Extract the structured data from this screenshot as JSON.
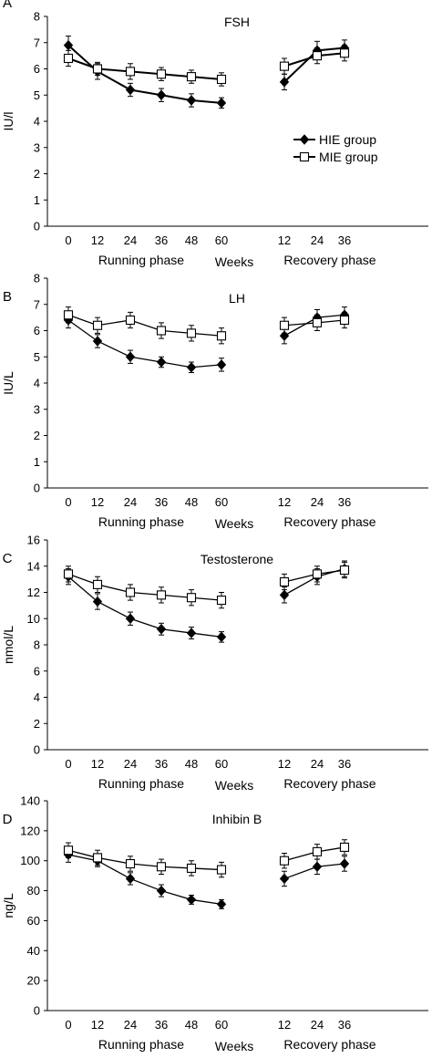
{
  "chart_data": [
    {
      "type": "line",
      "panel_label": "A",
      "title": "FSH",
      "ylabel": "IU/l",
      "ylim": [
        0,
        8
      ],
      "yticks": [
        0,
        1,
        2,
        3,
        4,
        5,
        6,
        7,
        8
      ],
      "x_tick_labels": [
        "0",
        "12",
        "24",
        "36",
        "48",
        "60",
        "12",
        "24",
        "36"
      ],
      "group_labels": [
        "Running phase",
        "Weeks",
        "Recovery phase"
      ],
      "legend": [
        "HIE group",
        "MIE group"
      ],
      "series": [
        {
          "name": "HIE group",
          "marker": "filled-diamond",
          "running": [
            6.9,
            5.9,
            5.2,
            5.0,
            4.8,
            4.7
          ],
          "recovery": [
            5.5,
            6.7,
            6.8
          ],
          "running_err": [
            0.35,
            0.3,
            0.25,
            0.25,
            0.25,
            0.2
          ],
          "recovery_err": [
            0.3,
            0.35,
            0.3
          ]
        },
        {
          "name": "MIE group",
          "marker": "open-square",
          "running": [
            6.4,
            6.0,
            5.9,
            5.8,
            5.7,
            5.6
          ],
          "recovery": [
            6.1,
            6.5,
            6.6
          ],
          "running_err": [
            0.3,
            0.25,
            0.3,
            0.25,
            0.25,
            0.25
          ],
          "recovery_err": [
            0.3,
            0.3,
            0.3
          ]
        }
      ]
    },
    {
      "type": "line",
      "panel_label": "B",
      "title": "LH",
      "ylabel": "IU/L",
      "ylim": [
        0,
        8
      ],
      "yticks": [
        0,
        1,
        2,
        3,
        4,
        5,
        6,
        7,
        8
      ],
      "x_tick_labels": [
        "0",
        "12",
        "24",
        "36",
        "48",
        "60",
        "12",
        "24",
        "36"
      ],
      "group_labels": [
        "Running phase",
        "Weeks",
        "Recovery phase"
      ],
      "series": [
        {
          "name": "HIE group",
          "marker": "filled-diamond",
          "running": [
            6.4,
            5.6,
            5.0,
            4.8,
            4.6,
            4.7
          ],
          "recovery": [
            5.8,
            6.5,
            6.6
          ],
          "running_err": [
            0.3,
            0.25,
            0.25,
            0.2,
            0.2,
            0.25
          ],
          "recovery_err": [
            0.3,
            0.3,
            0.3
          ]
        },
        {
          "name": "MIE group",
          "marker": "open-square",
          "running": [
            6.6,
            6.2,
            6.4,
            6.0,
            5.9,
            5.8
          ],
          "recovery": [
            6.2,
            6.3,
            6.4
          ],
          "running_err": [
            0.3,
            0.3,
            0.3,
            0.3,
            0.3,
            0.3
          ],
          "recovery_err": [
            0.3,
            0.3,
            0.3
          ]
        }
      ]
    },
    {
      "type": "line",
      "panel_label": "C",
      "title": "Testosterone",
      "ylabel": "nmol/L",
      "ylim": [
        0,
        16
      ],
      "yticks": [
        0,
        2,
        4,
        6,
        8,
        10,
        12,
        14,
        16
      ],
      "x_tick_labels": [
        "0",
        "12",
        "24",
        "36",
        "48",
        "60",
        "12",
        "24",
        "36"
      ],
      "group_labels": [
        "Running phase",
        "Weeks",
        "Recovery phase"
      ],
      "series": [
        {
          "name": "HIE group",
          "marker": "filled-diamond",
          "running": [
            13.2,
            11.3,
            10.0,
            9.2,
            8.9,
            8.6
          ],
          "recovery": [
            11.8,
            13.2,
            13.8
          ],
          "running_err": [
            0.6,
            0.6,
            0.5,
            0.45,
            0.45,
            0.4
          ],
          "recovery_err": [
            0.6,
            0.6,
            0.6
          ]
        },
        {
          "name": "MIE group",
          "marker": "open-square",
          "running": [
            13.4,
            12.6,
            12.0,
            11.8,
            11.6,
            11.4
          ],
          "recovery": [
            12.8,
            13.4,
            13.7
          ],
          "running_err": [
            0.6,
            0.6,
            0.6,
            0.6,
            0.6,
            0.6
          ],
          "recovery_err": [
            0.6,
            0.6,
            0.6
          ]
        }
      ]
    },
    {
      "type": "line",
      "panel_label": "D",
      "title": "Inhibin B",
      "ylabel": "ng/L",
      "ylim": [
        0,
        140
      ],
      "yticks": [
        0,
        20,
        40,
        60,
        80,
        100,
        120,
        140
      ],
      "x_tick_labels": [
        "0",
        "12",
        "24",
        "36",
        "48",
        "60",
        "12",
        "24",
        "36"
      ],
      "group_labels": [
        "Running phase",
        "Weeks",
        "Recovery phase"
      ],
      "series": [
        {
          "name": "HIE group",
          "marker": "filled-diamond",
          "running": [
            104,
            100,
            88,
            80,
            74,
            71
          ],
          "recovery": [
            88,
            96,
            98
          ],
          "running_err": [
            5,
            4,
            4,
            4,
            3,
            3
          ],
          "recovery_err": [
            5,
            5,
            5
          ]
        },
        {
          "name": "MIE group",
          "marker": "open-square",
          "running": [
            107,
            102,
            98,
            96,
            95,
            94
          ],
          "recovery": [
            100,
            106,
            109
          ],
          "running_err": [
            5,
            5,
            5,
            5,
            5,
            5
          ],
          "recovery_err": [
            5,
            5,
            5
          ]
        }
      ]
    }
  ]
}
